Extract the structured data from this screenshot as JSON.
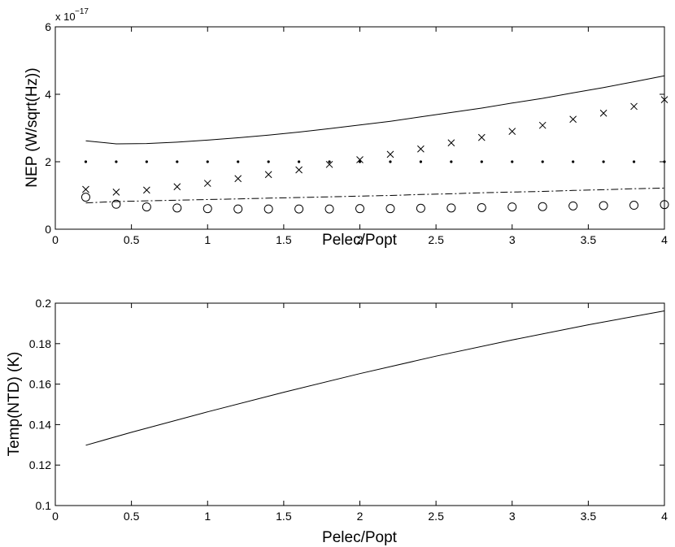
{
  "chart_data": [
    {
      "type": "line",
      "title": "",
      "xlabel": "Pelec/Popt",
      "ylabel": "NEP (W/sqrt(Hz))",
      "xlim": [
        0,
        4
      ],
      "ylim": [
        0,
        6
      ],
      "y_exponent_label": "x 10^-17",
      "y_exponent_base": "x 10",
      "y_exponent_power": "−17",
      "xticks": [
        "0",
        "0.5",
        "1",
        "1.5",
        "2",
        "2.5",
        "3",
        "3.5",
        "4"
      ],
      "yticks": [
        "0",
        "2",
        "4",
        "6"
      ],
      "grid": false,
      "legend": "none",
      "series": [
        {
          "style": "solid",
          "x": [
            0.2,
            0.4,
            0.6,
            0.8,
            1.0,
            1.2,
            1.4,
            1.6,
            1.8,
            2.0,
            2.2,
            2.4,
            2.6,
            2.8,
            3.0,
            3.2,
            3.4,
            3.6,
            3.8,
            4.0
          ],
          "y": [
            2.62,
            2.53,
            2.54,
            2.58,
            2.64,
            2.71,
            2.79,
            2.88,
            2.98,
            3.09,
            3.2,
            3.33,
            3.46,
            3.59,
            3.74,
            3.88,
            4.04,
            4.2,
            4.37,
            4.55
          ]
        },
        {
          "style": "x-markers",
          "x": [
            0.2,
            0.4,
            0.6,
            0.8,
            1.0,
            1.2,
            1.4,
            1.6,
            1.8,
            2.0,
            2.2,
            2.4,
            2.6,
            2.8,
            3.0,
            3.2,
            3.4,
            3.6,
            3.8,
            4.0
          ],
          "y": [
            1.18,
            1.1,
            1.16,
            1.26,
            1.36,
            1.5,
            1.62,
            1.76,
            1.92,
            2.06,
            2.22,
            2.38,
            2.56,
            2.72,
            2.9,
            3.08,
            3.26,
            3.44,
            3.64,
            3.84
          ]
        },
        {
          "style": "dot-markers",
          "x": [
            0.2,
            0.4,
            0.6,
            0.8,
            1.0,
            1.2,
            1.4,
            1.6,
            1.8,
            2.0,
            2.2,
            2.4,
            2.6,
            2.8,
            3.0,
            3.2,
            3.4,
            3.6,
            3.8,
            4.0
          ],
          "y": [
            2.0,
            2.0,
            2.0,
            2.0,
            2.0,
            2.0,
            2.0,
            2.0,
            2.0,
            2.0,
            2.0,
            2.0,
            2.0,
            2.0,
            2.0,
            2.0,
            2.0,
            2.0,
            2.0,
            2.0
          ]
        },
        {
          "style": "dash-dot",
          "x": [
            0.2,
            0.4,
            0.6,
            0.8,
            1.0,
            1.2,
            1.4,
            1.6,
            1.8,
            2.0,
            2.2,
            2.4,
            2.6,
            2.8,
            3.0,
            3.2,
            3.4,
            3.6,
            3.8,
            4.0
          ],
          "y": [
            0.78,
            0.82,
            0.84,
            0.86,
            0.88,
            0.9,
            0.92,
            0.94,
            0.96,
            0.98,
            1.0,
            1.03,
            1.05,
            1.08,
            1.1,
            1.12,
            1.15,
            1.17,
            1.2,
            1.22
          ]
        },
        {
          "style": "o-markers",
          "x": [
            0.2,
            0.4,
            0.6,
            0.8,
            1.0,
            1.2,
            1.4,
            1.6,
            1.8,
            2.0,
            2.2,
            2.4,
            2.6,
            2.8,
            3.0,
            3.2,
            3.4,
            3.6,
            3.8,
            4.0
          ],
          "y": [
            0.95,
            0.74,
            0.66,
            0.63,
            0.61,
            0.6,
            0.6,
            0.6,
            0.6,
            0.61,
            0.61,
            0.62,
            0.63,
            0.64,
            0.66,
            0.67,
            0.69,
            0.7,
            0.71,
            0.73
          ]
        }
      ]
    },
    {
      "type": "line",
      "title": "",
      "xlabel": "Pelec/Popt",
      "ylabel": "Temp(NTD) (K)",
      "xlim": [
        0,
        4
      ],
      "ylim": [
        0.1,
        0.2
      ],
      "xticks": [
        "0",
        "0.5",
        "1",
        "1.5",
        "2",
        "2.5",
        "3",
        "3.5",
        "4"
      ],
      "yticks": [
        "0.1",
        "0.12",
        "0.14",
        "0.16",
        "0.18",
        "0.2"
      ],
      "grid": false,
      "legend": "none",
      "series": [
        {
          "style": "solid",
          "x": [
            0.2,
            0.5,
            1.0,
            1.5,
            2.0,
            2.5,
            3.0,
            3.5,
            4.0
          ],
          "y": [
            0.1298,
            0.1362,
            0.1463,
            0.156,
            0.1652,
            0.1738,
            0.1818,
            0.1893,
            0.1962
          ]
        }
      ]
    }
  ]
}
